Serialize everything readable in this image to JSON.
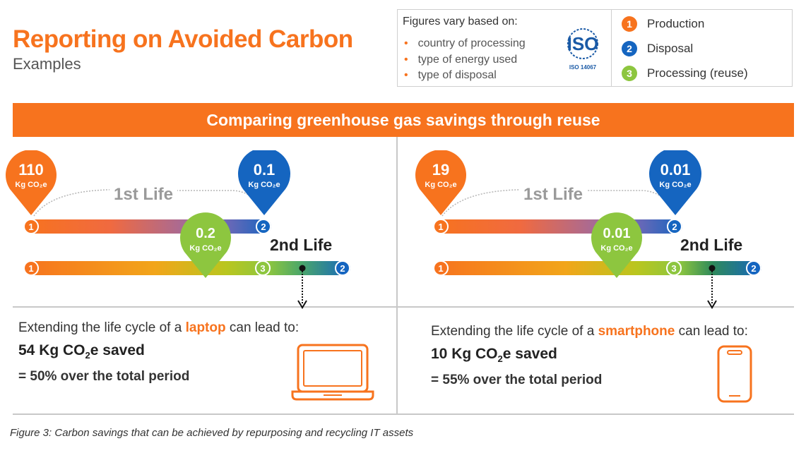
{
  "header": {
    "title": "Reporting on Avoided Carbon",
    "subtitle": "Examples"
  },
  "notes": {
    "heading": "Figures vary based on:",
    "items": [
      "country of processing",
      "type of energy used",
      "type of disposal"
    ],
    "iso_logo_text": "ISO",
    "iso_logo_subtext": "ISO 14067"
  },
  "legend": [
    {
      "num": "1",
      "label": "Production",
      "color": "#f7731e"
    },
    {
      "num": "2",
      "label": "Disposal",
      "color": "#1565c0"
    },
    {
      "num": "3",
      "label": "Processing (reuse)",
      "color": "#8dc63f"
    }
  ],
  "banner": "Comparing greenhouse gas savings through reuse",
  "panels": {
    "laptop": {
      "production": {
        "value": "110",
        "unit": "Kg CO₂e"
      },
      "disposal": {
        "value": "0.1",
        "unit": "Kg CO₂e"
      },
      "processing": {
        "value": "0.2",
        "unit": "Kg CO₂e"
      },
      "first_life": "1st Life",
      "second_life": "2nd Life",
      "desc_prefix": "Extending the life cycle of a",
      "device": "laptop",
      "desc_suffix": "can lead to:",
      "saved_value": "54 Kg CO",
      "saved_sub": "2",
      "saved_suffix": "e saved",
      "percent": "= 50% over the total period"
    },
    "smartphone": {
      "production": {
        "value": "19",
        "unit": "Kg CO₂e"
      },
      "disposal": {
        "value": "0.01",
        "unit": "Kg CO₂e"
      },
      "processing": {
        "value": "0.01",
        "unit": "Kg CO₂e"
      },
      "first_life": "1st Life",
      "second_life": "2nd Life",
      "desc_prefix": "Extending the life cycle of a",
      "device": "smartphone",
      "desc_suffix": "can lead to:",
      "saved_value": "10 Kg CO",
      "saved_sub": "2",
      "saved_suffix": "e saved",
      "percent": "= 55% over the total period"
    }
  },
  "caption": "Figure 3: Carbon savings that can be achieved by repurposing and recycling IT assets",
  "colors": {
    "orange": "#f7731e",
    "blue": "#1565c0",
    "green": "#8dc63f",
    "purple": "#8e6ab3"
  }
}
